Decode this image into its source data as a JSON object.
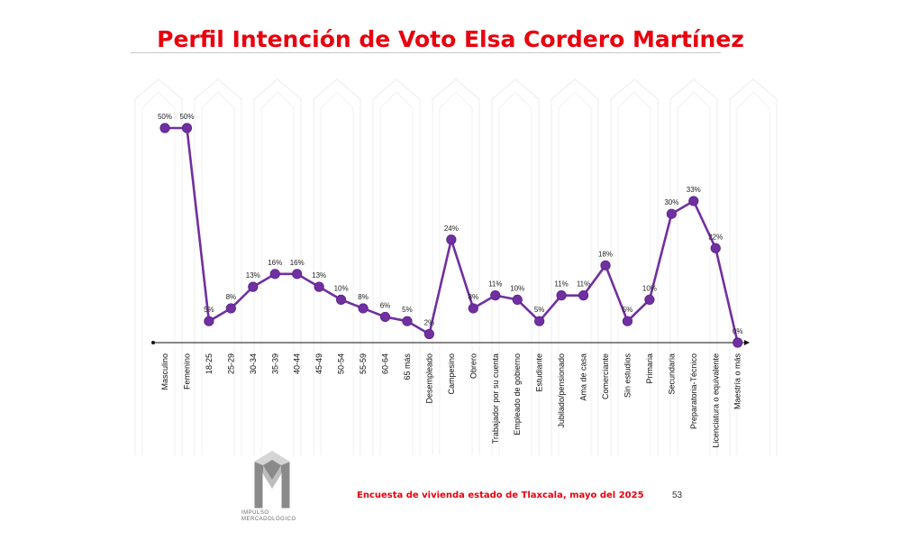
{
  "title": "Perfil Intención de Voto Elsa Cordero Martínez",
  "footer": {
    "source": "Encuesta de vivienda estado de Tlaxcala, mayo   del 2025",
    "page_number": "53"
  },
  "logo": {
    "text_line1": "IMPULSO",
    "text_line2": "MERCADOLÓGICO"
  },
  "colors": {
    "title": "#e8000d",
    "series": "#7030a0",
    "footer_text": "#e8000d"
  },
  "chart_data": {
    "type": "line",
    "title": "Perfil Intención de Voto Elsa Cordero Martínez",
    "xlabel": "",
    "ylabel": "",
    "ylim": [
      0,
      50
    ],
    "grid": false,
    "legend": "none",
    "categories": [
      "Masculino",
      "Femenino",
      "18-25",
      "25-29",
      "30-34",
      "35-39",
      "40-44",
      "45-49",
      "50-54",
      "55-59",
      "60-64",
      "65 más",
      "Desempleado",
      "Campesino",
      "Obrero",
      "Trabajador por su cuenta",
      "Empleado de gobierno",
      "Estudiante",
      "Jubilado/pensionado",
      "Ama de casa",
      "Comerciante",
      "Sin estudios",
      "Primaria",
      "Secundaria",
      "Preparatoria-Técnico",
      "Licenciatura o equivalente",
      "Maestría o más"
    ],
    "series": [
      {
        "values": [
          50,
          50,
          5,
          8,
          13,
          16,
          16,
          13,
          10,
          8,
          6,
          5,
          2,
          24,
          8,
          11,
          10,
          5,
          11,
          11,
          18,
          5,
          10,
          30,
          33,
          22,
          0
        ],
        "labels": [
          "50%",
          "50%",
          "5%",
          "8%",
          "13%",
          "16%",
          "16%",
          "13%",
          "10%",
          "8%",
          "6%",
          "5%",
          "2%",
          "24%",
          "8%",
          "11%",
          "10%",
          "5%",
          "11%",
          "11%",
          "18%",
          "5%",
          "10%",
          "30%",
          "33%",
          "22%",
          "0%"
        ]
      }
    ]
  }
}
